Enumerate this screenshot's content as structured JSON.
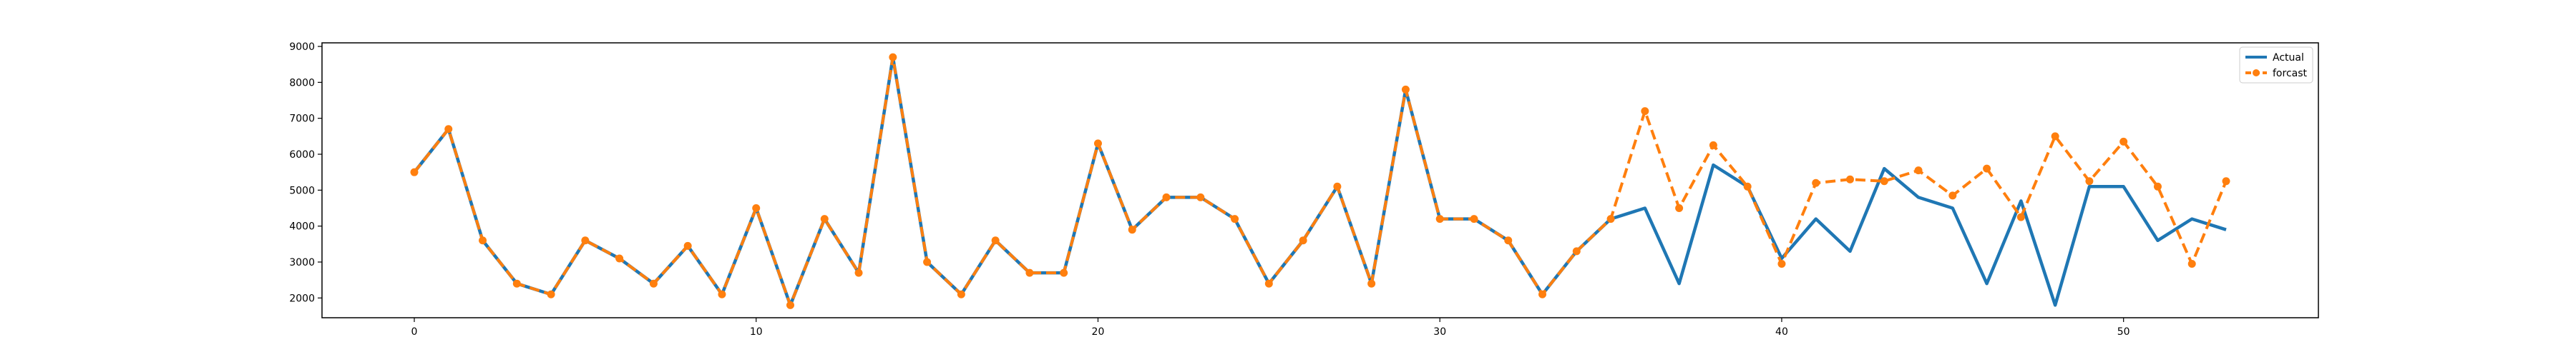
{
  "chart_data": {
    "type": "line",
    "title": "",
    "xlabel": "",
    "ylabel": "",
    "xlim": [
      -2.7,
      55.7
    ],
    "ylim": [
      1450,
      9100
    ],
    "x_ticks": [
      0,
      10,
      20,
      30,
      40,
      50
    ],
    "y_ticks": [
      2000,
      3000,
      4000,
      5000,
      6000,
      7000,
      8000,
      9000
    ],
    "grid": false,
    "legend_position": "top-right",
    "series": [
      {
        "name": "Actual",
        "color": "#1f77b4",
        "style": "solid",
        "x": [
          0,
          1,
          2,
          3,
          4,
          5,
          6,
          7,
          8,
          9,
          10,
          11,
          12,
          13,
          14,
          15,
          16,
          17,
          18,
          19,
          20,
          21,
          22,
          23,
          24,
          25,
          26,
          27,
          28,
          29,
          30,
          31,
          32,
          33,
          34,
          35,
          36,
          37,
          38,
          39,
          40,
          41,
          42,
          43,
          44,
          45,
          46,
          47,
          48,
          49,
          50,
          51,
          52,
          53
        ],
        "values": [
          5500,
          6700,
          3600,
          2400,
          2100,
          3600,
          3100,
          2400,
          3450,
          2100,
          4500,
          1800,
          4200,
          2700,
          8700,
          3000,
          2100,
          3600,
          2700,
          2700,
          6300,
          3900,
          4800,
          4800,
          4200,
          2400,
          3600,
          5100,
          2400,
          7800,
          4200,
          4200,
          3600,
          2100,
          3300,
          4200,
          4500,
          2400,
          5700,
          5100,
          3100,
          4200,
          3300,
          5600,
          4800,
          4500,
          2400,
          4700,
          1800,
          5100,
          5100,
          3600,
          4200,
          3900
        ]
      },
      {
        "name": "forcast",
        "color": "#ff7f0e",
        "style": "dashed",
        "marker": "circle",
        "x": [
          0,
          1,
          2,
          3,
          4,
          5,
          6,
          7,
          8,
          9,
          10,
          11,
          12,
          13,
          14,
          15,
          16,
          17,
          18,
          19,
          20,
          21,
          22,
          23,
          24,
          25,
          26,
          27,
          28,
          29,
          30,
          31,
          32,
          33,
          34,
          35,
          36,
          37,
          38,
          39,
          40,
          41,
          42,
          43,
          44,
          45,
          46,
          47,
          48,
          49,
          50,
          51,
          52,
          53
        ],
        "values": [
          5500,
          6700,
          3600,
          2400,
          2100,
          3600,
          3100,
          2400,
          3450,
          2100,
          4500,
          1800,
          4200,
          2700,
          8700,
          3000,
          2100,
          3600,
          2700,
          2700,
          6300,
          3900,
          4800,
          4800,
          4200,
          2400,
          3600,
          5100,
          2400,
          7800,
          4200,
          4200,
          3600,
          2100,
          3300,
          4200,
          7200,
          4500,
          6250,
          5100,
          2950,
          5200,
          5300,
          5250,
          5550,
          4850,
          5600,
          4250,
          6500,
          5250,
          6350,
          5100,
          2950,
          5250
        ]
      }
    ]
  }
}
